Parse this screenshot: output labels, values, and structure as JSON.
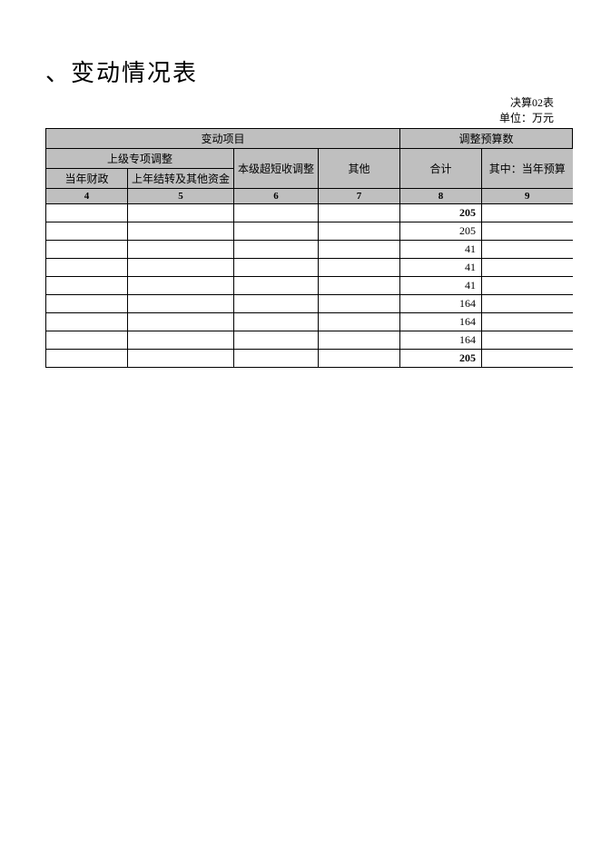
{
  "title": "、变动情况表",
  "meta": {
    "line1": "决算02表",
    "line2": "单位：万元"
  },
  "headers": {
    "group1": "变动项目",
    "group2": "调整预算数",
    "sub1": "上级专项调整",
    "col4": "当年财政",
    "col5": "上年结转及其他资金",
    "col6": "本级超短收调整",
    "col7": "其他",
    "col8": "合计",
    "col9": "其中：当年预算",
    "n4": "4",
    "n5": "5",
    "n6": "6",
    "n7": "7",
    "n8": "8",
    "n9": "9"
  },
  "rows": [
    {
      "c4": "",
      "c5": "",
      "c6": "",
      "c7": "",
      "c8": "205",
      "c9": "",
      "bold": true
    },
    {
      "c4": "",
      "c5": "",
      "c6": "",
      "c7": "",
      "c8": "205",
      "c9": "",
      "bold": false
    },
    {
      "c4": "",
      "c5": "",
      "c6": "",
      "c7": "",
      "c8": "41",
      "c9": "",
      "bold": false
    },
    {
      "c4": "",
      "c5": "",
      "c6": "",
      "c7": "",
      "c8": "41",
      "c9": "",
      "bold": false
    },
    {
      "c4": "",
      "c5": "",
      "c6": "",
      "c7": "",
      "c8": "41",
      "c9": "",
      "bold": false
    },
    {
      "c4": "",
      "c5": "",
      "c6": "",
      "c7": "",
      "c8": "164",
      "c9": "",
      "bold": false
    },
    {
      "c4": "",
      "c5": "",
      "c6": "",
      "c7": "",
      "c8": "164",
      "c9": "",
      "bold": false
    },
    {
      "c4": "",
      "c5": "",
      "c6": "",
      "c7": "",
      "c8": "164",
      "c9": "",
      "bold": false
    },
    {
      "c4": "",
      "c5": "",
      "c6": "",
      "c7": "",
      "c8": "205",
      "c9": "",
      "bold": true
    }
  ],
  "style": {
    "hdr_bg": "#bfbfbf",
    "border_color": "#000000",
    "page_bg": "#ffffff"
  }
}
